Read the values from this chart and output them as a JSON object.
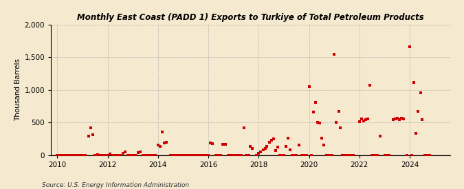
{
  "title": "Monthly East Coast (PADD 1) Exports to Turkiye of Total Petroleum Products",
  "ylabel": "Thousand Barrels",
  "source": "Source: U.S. Energy Information Administration",
  "background_color": "#f5e9d0",
  "plot_bg_color": "#f5e9d0",
  "marker_color": "#cc0000",
  "marker_size": 3.5,
  "xlim": [
    2009.75,
    2025.6
  ],
  "ylim": [
    0,
    2000
  ],
  "yticks": [
    0,
    500,
    1000,
    1500,
    2000
  ],
  "xticks": [
    2010,
    2012,
    2014,
    2016,
    2018,
    2020,
    2022,
    2024
  ],
  "data": [
    [
      2010.0,
      0
    ],
    [
      2010.1,
      0
    ],
    [
      2010.2,
      0
    ],
    [
      2010.3,
      0
    ],
    [
      2010.4,
      0
    ],
    [
      2010.5,
      0
    ],
    [
      2010.6,
      0
    ],
    [
      2010.7,
      0
    ],
    [
      2010.8,
      0
    ],
    [
      2010.9,
      0
    ],
    [
      2011.0,
      0
    ],
    [
      2011.1,
      0
    ],
    [
      2011.25,
      295
    ],
    [
      2011.33,
      420
    ],
    [
      2011.42,
      310
    ],
    [
      2011.5,
      0
    ],
    [
      2011.6,
      10
    ],
    [
      2011.7,
      0
    ],
    [
      2011.8,
      0
    ],
    [
      2011.9,
      0
    ],
    [
      2012.0,
      0
    ],
    [
      2012.08,
      20
    ],
    [
      2012.2,
      0
    ],
    [
      2012.3,
      0
    ],
    [
      2012.4,
      0
    ],
    [
      2012.5,
      0
    ],
    [
      2012.6,
      30
    ],
    [
      2012.7,
      50
    ],
    [
      2012.8,
      0
    ],
    [
      2012.9,
      0
    ],
    [
      2013.0,
      0
    ],
    [
      2013.1,
      0
    ],
    [
      2013.2,
      35
    ],
    [
      2013.3,
      50
    ],
    [
      2013.4,
      0
    ],
    [
      2013.5,
      0
    ],
    [
      2013.6,
      0
    ],
    [
      2013.7,
      0
    ],
    [
      2013.8,
      0
    ],
    [
      2013.9,
      0
    ],
    [
      2014.0,
      150
    ],
    [
      2014.08,
      130
    ],
    [
      2014.17,
      355
    ],
    [
      2014.25,
      180
    ],
    [
      2014.33,
      190
    ],
    [
      2014.5,
      0
    ],
    [
      2014.6,
      0
    ],
    [
      2014.7,
      0
    ],
    [
      2014.8,
      0
    ],
    [
      2014.9,
      0
    ],
    [
      2015.0,
      0
    ],
    [
      2015.1,
      0
    ],
    [
      2015.2,
      0
    ],
    [
      2015.3,
      0
    ],
    [
      2015.4,
      0
    ],
    [
      2015.5,
      0
    ],
    [
      2015.6,
      0
    ],
    [
      2015.7,
      0
    ],
    [
      2015.8,
      0
    ],
    [
      2015.9,
      0
    ],
    [
      2016.0,
      0
    ],
    [
      2016.08,
      180
    ],
    [
      2016.17,
      170
    ],
    [
      2016.3,
      0
    ],
    [
      2016.4,
      0
    ],
    [
      2016.5,
      0
    ],
    [
      2016.58,
      165
    ],
    [
      2016.67,
      160
    ],
    [
      2016.8,
      0
    ],
    [
      2016.9,
      0
    ],
    [
      2017.0,
      0
    ],
    [
      2017.1,
      0
    ],
    [
      2017.2,
      0
    ],
    [
      2017.3,
      0
    ],
    [
      2017.42,
      420
    ],
    [
      2017.5,
      0
    ],
    [
      2017.6,
      0
    ],
    [
      2017.67,
      130
    ],
    [
      2017.75,
      100
    ],
    [
      2017.9,
      0
    ],
    [
      2018.0,
      30
    ],
    [
      2018.08,
      50
    ],
    [
      2018.17,
      80
    ],
    [
      2018.25,
      100
    ],
    [
      2018.33,
      130
    ],
    [
      2018.42,
      200
    ],
    [
      2018.5,
      230
    ],
    [
      2018.58,
      250
    ],
    [
      2018.67,
      70
    ],
    [
      2018.75,
      120
    ],
    [
      2018.83,
      0
    ],
    [
      2018.9,
      0
    ],
    [
      2019.0,
      0
    ],
    [
      2019.08,
      130
    ],
    [
      2019.17,
      260
    ],
    [
      2019.25,
      80
    ],
    [
      2019.33,
      0
    ],
    [
      2019.42,
      0
    ],
    [
      2019.5,
      0
    ],
    [
      2019.6,
      150
    ],
    [
      2019.7,
      0
    ],
    [
      2019.8,
      0
    ],
    [
      2019.9,
      0
    ],
    [
      2020.0,
      1050
    ],
    [
      2020.08,
      0
    ],
    [
      2020.17,
      660
    ],
    [
      2020.25,
      810
    ],
    [
      2020.33,
      500
    ],
    [
      2020.42,
      490
    ],
    [
      2020.5,
      260
    ],
    [
      2020.58,
      150
    ],
    [
      2020.7,
      0
    ],
    [
      2020.8,
      0
    ],
    [
      2020.9,
      0
    ],
    [
      2021.0,
      1540
    ],
    [
      2021.08,
      500
    ],
    [
      2021.17,
      670
    ],
    [
      2021.25,
      420
    ],
    [
      2021.33,
      0
    ],
    [
      2021.42,
      0
    ],
    [
      2021.5,
      0
    ],
    [
      2021.58,
      0
    ],
    [
      2021.67,
      0
    ],
    [
      2021.75,
      0
    ],
    [
      2022.0,
      510
    ],
    [
      2022.08,
      550
    ],
    [
      2022.17,
      525
    ],
    [
      2022.25,
      540
    ],
    [
      2022.33,
      550
    ],
    [
      2022.42,
      1070
    ],
    [
      2022.5,
      0
    ],
    [
      2022.6,
      0
    ],
    [
      2022.7,
      0
    ],
    [
      2022.83,
      285
    ],
    [
      2023.0,
      0
    ],
    [
      2023.08,
      0
    ],
    [
      2023.17,
      0
    ],
    [
      2023.33,
      540
    ],
    [
      2023.42,
      550
    ],
    [
      2023.5,
      565
    ],
    [
      2023.58,
      540
    ],
    [
      2023.67,
      565
    ],
    [
      2023.75,
      550
    ],
    [
      2023.9,
      0
    ],
    [
      2024.0,
      1660
    ],
    [
      2024.08,
      0
    ],
    [
      2024.17,
      1115
    ],
    [
      2024.25,
      330
    ],
    [
      2024.33,
      670
    ],
    [
      2024.42,
      955
    ],
    [
      2024.5,
      540
    ],
    [
      2024.6,
      0
    ],
    [
      2024.7,
      0
    ],
    [
      2024.8,
      0
    ]
  ]
}
